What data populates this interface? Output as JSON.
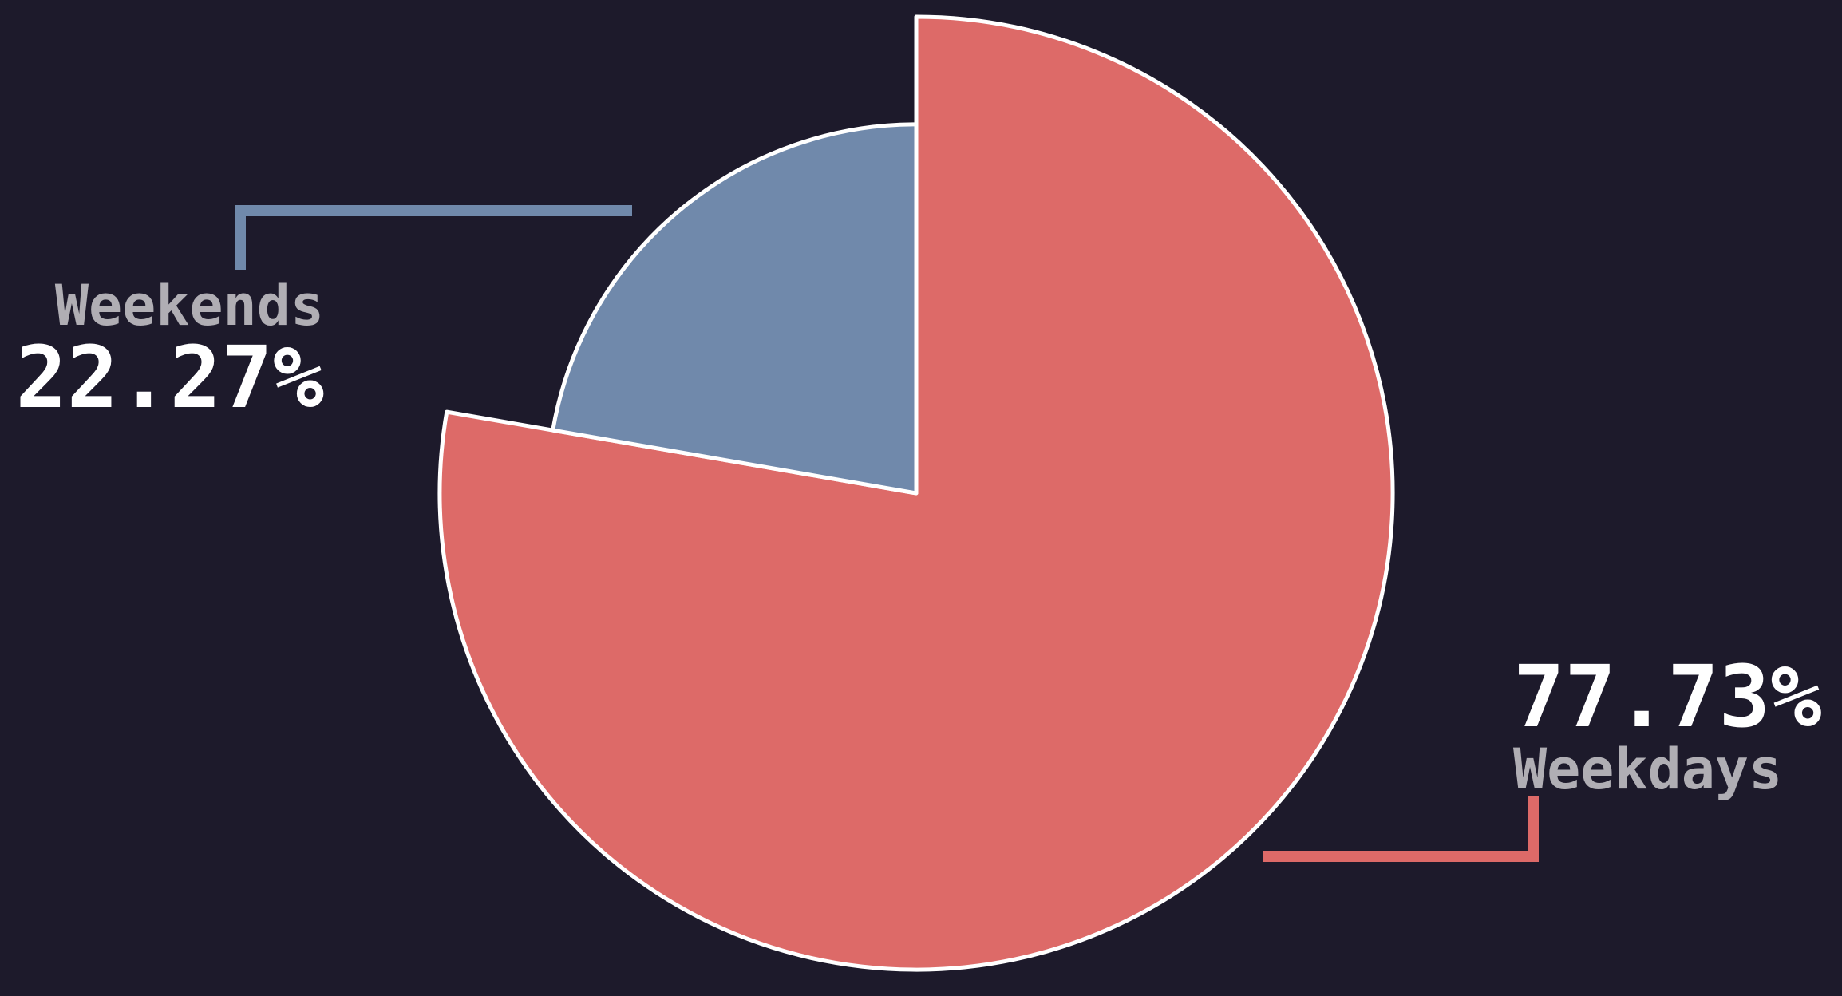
{
  "chart_data": {
    "type": "pie",
    "title": "",
    "start_angle_deg": 90,
    "direction": "counterclockwise",
    "background_color": "#1d1a2b",
    "slice_border_color": "#ffffff",
    "value_text_color": "#ffffff",
    "label_text_color": "#b0aeb4",
    "legend_position": "none",
    "slices": [
      {
        "label": "Weekdays",
        "value_pct": 77.73,
        "display_value": "77.73%",
        "color": "#dd6a68",
        "radius_rel": 1.0
      },
      {
        "label": "Weekends",
        "value_pct": 22.27,
        "display_value": "22.27%",
        "color": "#7089ab",
        "radius_rel": 0.774
      }
    ],
    "annotations": [
      {
        "side": "left",
        "label": "Weekends",
        "value": "22.27%",
        "leader_color": "#7089ab"
      },
      {
        "side": "right",
        "label": "Weekdays",
        "value": "77.73%",
        "leader_color": "#dd6a68"
      }
    ]
  }
}
